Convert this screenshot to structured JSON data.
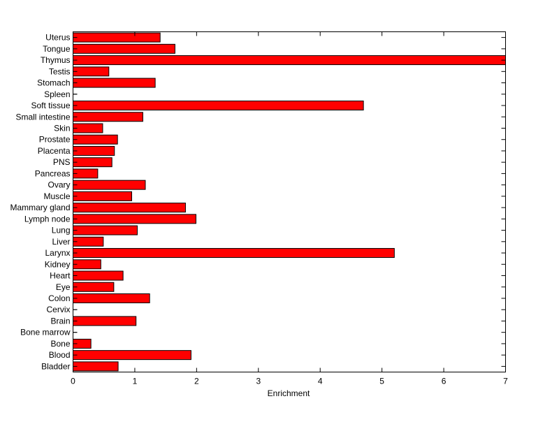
{
  "chart_data": {
    "type": "bar",
    "orientation": "horizontal",
    "title": "",
    "xlabel": "Enrichment",
    "ylabel": "",
    "xlim": [
      0,
      7
    ],
    "xticks": [
      0,
      1,
      2,
      3,
      4,
      5,
      6,
      7
    ],
    "grid": false,
    "bar_color": "#ff0000",
    "categories": [
      "Uterus",
      "Tongue",
      "Thymus",
      "Testis",
      "Stomach",
      "Spleen",
      "Soft tissue",
      "Small intestine",
      "Skin",
      "Prostate",
      "Placenta",
      "PNS",
      "Pancreas",
      "Ovary",
      "Muscle",
      "Mammary gland",
      "Lymph node",
      "Lung",
      "Liver",
      "Larynx",
      "Kidney",
      "Heart",
      "Eye",
      "Colon",
      "Cervix",
      "Brain",
      "Bone marrow",
      "Bone",
      "Blood",
      "Bladder"
    ],
    "values": [
      1.41,
      1.65,
      7.0,
      0.58,
      1.33,
      0,
      4.7,
      1.13,
      0.48,
      0.72,
      0.67,
      0.63,
      0.4,
      1.17,
      0.95,
      1.82,
      1.99,
      1.04,
      0.49,
      5.2,
      0.45,
      0.81,
      0.66,
      1.24,
      0,
      1.02,
      0,
      0.29,
      1.91,
      0.73
    ]
  }
}
